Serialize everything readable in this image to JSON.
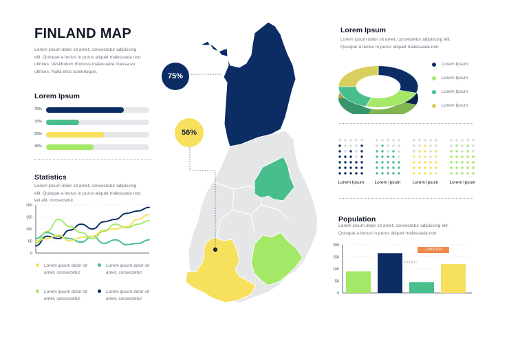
{
  "title": "FINLAND MAP",
  "intro_text": "Lorem ipsum dolor sit amet, consectetur adipiscing elit. Quisque a lectus in purus aliquet malesuada non ultrices. Vestibulum rhoncus malesuada massa eu ultrices. Nulla eros scelerisque.",
  "bars_section": {
    "title": "Lorem Ipsum",
    "items": [
      {
        "pct_label": "75%",
        "value": 0.75,
        "color": "#0c2d64"
      },
      {
        "pct_label": "32%",
        "value": 0.32,
        "color": "#48be8c"
      },
      {
        "pct_label": "56%",
        "value": 0.56,
        "color": "#f6e05e"
      },
      {
        "pct_label": "46%",
        "value": 0.46,
        "color": "#a4e868"
      }
    ]
  },
  "statistics": {
    "title": "Statistics",
    "text": "Lorem ipsum dolor sit amet, consectetur adipiscing elit. Quisque a lectus in purus aliquet malesuada non vel elit, consectetur.",
    "legend": [
      {
        "text": "Lorem ipsum dolor sit amet, consectetur",
        "color": "#f6e05e"
      },
      {
        "text": "Lorem ipsum dolor sit amet, consectetur",
        "color": "#48be8c"
      },
      {
        "text": "Lorem ipsum dolor sit amet, consectetur",
        "color": "#a4e868"
      },
      {
        "text": "Lorem ipsum dolor sit amet, consectetur",
        "color": "#0c2d64"
      }
    ]
  },
  "map": {
    "badge_top": "75%",
    "badge_mid": "56%",
    "colors": {
      "north": "#0c2d64",
      "east": "#48be8c",
      "southeast": "#a4e868",
      "southwest": "#f6e05e",
      "base": "#e5e6e8"
    }
  },
  "donut_section": {
    "title": "Lorem Ipsum",
    "text": "Lorem ipsum dolor sit amet, consectetur adipiscing elit. Quisque a lectus in purus aliquet malesuada non",
    "legend": [
      {
        "label": "Lorem Ipsum",
        "color": "#0c2d64"
      },
      {
        "label": "Lorem Ipsum",
        "color": "#a4e868"
      },
      {
        "label": "Lorem Ipsum",
        "color": "#48be8c"
      },
      {
        "label": "Lorem Ipsum",
        "color": "#d9cf5e"
      }
    ]
  },
  "dot_grids": [
    {
      "label": "Lorem Ipsum",
      "color": "#0c2d64"
    },
    {
      "label": "Lorem Ipsum",
      "color": "#48be8c"
    },
    {
      "label": "Lorem Ipsum",
      "color": "#f6e05e"
    },
    {
      "label": "Lorem Ipsum",
      "color": "#a4e868"
    }
  ],
  "population": {
    "title": "Population",
    "text": "Lorem ipsum dolor sit amet, consectetur adipiscing elit. Quisque a lectus in purus aliquet malesuada non",
    "callout": "1.433,153"
  },
  "chart_data": [
    {
      "type": "line",
      "title": "",
      "x": [
        0,
        1,
        2,
        3,
        4,
        5,
        6,
        7,
        8,
        9,
        10
      ],
      "ylim": [
        0,
        200
      ],
      "yticks": [
        0,
        50,
        100,
        150,
        200
      ],
      "series": [
        {
          "color": "#0c2d64",
          "values": [
            30,
            70,
            60,
            95,
            120,
            100,
            130,
            140,
            165,
            175,
            190
          ]
        },
        {
          "color": "#48be8c",
          "values": [
            60,
            85,
            70,
            60,
            45,
            70,
            40,
            55,
            35,
            40,
            55
          ]
        },
        {
          "color": "#f6e05e",
          "values": [
            50,
            60,
            75,
            50,
            65,
            70,
            95,
            100,
            110,
            140,
            160
          ]
        },
        {
          "color": "#a4e868",
          "values": [
            40,
            90,
            140,
            110,
            85,
            60,
            90,
            120,
            105,
            120,
            135
          ]
        }
      ]
    },
    {
      "type": "bar",
      "title": "",
      "ylim": [
        0,
        200
      ],
      "yticks": [
        0,
        50,
        100,
        150,
        200
      ],
      "categories": [
        "",
        "",
        "",
        ""
      ],
      "values": [
        90,
        165,
        45,
        120
      ],
      "colors": [
        "#a4e868",
        "#0c2d64",
        "#48be8c",
        "#f6e05e"
      ]
    },
    {
      "type": "pie",
      "title": "",
      "values": [
        30,
        25,
        20,
        25
      ],
      "colors": [
        "#0c2d64",
        "#a4e868",
        "#48be8c",
        "#d9cf5e"
      ]
    }
  ]
}
